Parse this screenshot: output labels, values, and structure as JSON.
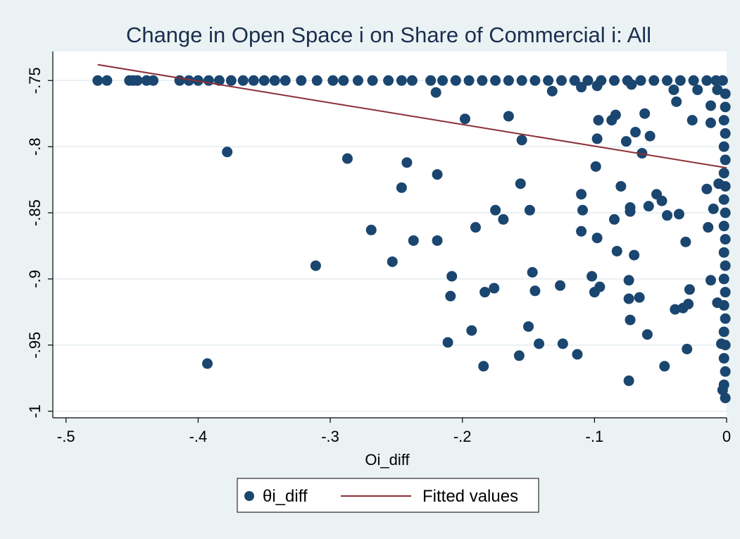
{
  "chart_data": {
    "type": "scatter",
    "title": "Change in Open Space i on Share of Commercial i: All",
    "xlabel": "Oi_diff",
    "ylabel": "",
    "xlim": [
      -0.51,
      0.0
    ],
    "ylim": [
      -1.005,
      -0.728
    ],
    "x_ticks": [
      -0.5,
      -0.4,
      -0.3,
      -0.2,
      -0.1,
      0
    ],
    "x_tick_labels": [
      "-.5",
      "-.4",
      "-.3",
      "-.2",
      "-.1",
      "0"
    ],
    "y_ticks": [
      -1,
      -0.95,
      -0.9,
      -0.85,
      -0.8,
      -0.75
    ],
    "y_tick_labels": [
      "-1",
      "-.95",
      "-.9",
      "-.85",
      "-.8",
      "-.75"
    ],
    "grid": true,
    "legend_position": "bottom",
    "colors": {
      "marker": "#1a4670",
      "fit": "#8b2f36",
      "plot_bg": "#ffffff",
      "page_bg": "#eaf2f3",
      "grid": "#e3ecef"
    },
    "series": [
      {
        "name": "θi_diff",
        "kind": "scatter",
        "points": [
          [
            -0.476,
            -0.75
          ],
          [
            -0.469,
            -0.75
          ],
          [
            -0.452,
            -0.75
          ],
          [
            -0.449,
            -0.75
          ],
          [
            -0.446,
            -0.75
          ],
          [
            -0.439,
            -0.75
          ],
          [
            -0.434,
            -0.75
          ],
          [
            -0.414,
            -0.75
          ],
          [
            -0.407,
            -0.75
          ],
          [
            -0.4,
            -0.75
          ],
          [
            -0.392,
            -0.75
          ],
          [
            -0.384,
            -0.75
          ],
          [
            -0.375,
            -0.75
          ],
          [
            -0.366,
            -0.75
          ],
          [
            -0.358,
            -0.75
          ],
          [
            -0.35,
            -0.75
          ],
          [
            -0.342,
            -0.75
          ],
          [
            -0.334,
            -0.75
          ],
          [
            -0.322,
            -0.75
          ],
          [
            -0.31,
            -0.75
          ],
          [
            -0.298,
            -0.75
          ],
          [
            -0.29,
            -0.75
          ],
          [
            -0.279,
            -0.75
          ],
          [
            -0.268,
            -0.75
          ],
          [
            -0.256,
            -0.75
          ],
          [
            -0.246,
            -0.75
          ],
          [
            -0.238,
            -0.75
          ],
          [
            -0.224,
            -0.75
          ],
          [
            -0.215,
            -0.75
          ],
          [
            -0.205,
            -0.75
          ],
          [
            -0.195,
            -0.75
          ],
          [
            -0.185,
            -0.75
          ],
          [
            -0.175,
            -0.75
          ],
          [
            -0.165,
            -0.75
          ],
          [
            -0.155,
            -0.75
          ],
          [
            -0.145,
            -0.75
          ],
          [
            -0.135,
            -0.75
          ],
          [
            -0.125,
            -0.75
          ],
          [
            -0.115,
            -0.75
          ],
          [
            -0.105,
            -0.75
          ],
          [
            -0.095,
            -0.75
          ],
          [
            -0.085,
            -0.75
          ],
          [
            -0.075,
            -0.75
          ],
          [
            -0.065,
            -0.75
          ],
          [
            -0.055,
            -0.75
          ],
          [
            -0.045,
            -0.75
          ],
          [
            -0.035,
            -0.75
          ],
          [
            -0.025,
            -0.75
          ],
          [
            -0.015,
            -0.75
          ],
          [
            -0.008,
            -0.75
          ],
          [
            -0.003,
            -0.75
          ],
          [
            -0.22,
            -0.759
          ],
          [
            -0.132,
            -0.758
          ],
          [
            -0.11,
            -0.755
          ],
          [
            -0.098,
            -0.754
          ],
          [
            -0.072,
            -0.753
          ],
          [
            -0.04,
            -0.757
          ],
          [
            -0.022,
            -0.757
          ],
          [
            -0.007,
            -0.757
          ],
          [
            -0.378,
            -0.804
          ],
          [
            -0.287,
            -0.809
          ],
          [
            -0.242,
            -0.812
          ],
          [
            -0.219,
            -0.821
          ],
          [
            -0.246,
            -0.831
          ],
          [
            -0.198,
            -0.779
          ],
          [
            -0.165,
            -0.777
          ],
          [
            -0.155,
            -0.795
          ],
          [
            -0.097,
            -0.78
          ],
          [
            -0.098,
            -0.794
          ],
          [
            -0.087,
            -0.78
          ],
          [
            -0.084,
            -0.776
          ],
          [
            -0.076,
            -0.796
          ],
          [
            -0.069,
            -0.789
          ],
          [
            -0.064,
            -0.805
          ],
          [
            -0.062,
            -0.775
          ],
          [
            -0.058,
            -0.792
          ],
          [
            -0.038,
            -0.766
          ],
          [
            -0.026,
            -0.78
          ],
          [
            -0.012,
            -0.782
          ],
          [
            -0.012,
            -0.769
          ],
          [
            -0.156,
            -0.828
          ],
          [
            -0.099,
            -0.815
          ],
          [
            -0.08,
            -0.83
          ],
          [
            -0.11,
            -0.836
          ],
          [
            -0.109,
            -0.848
          ],
          [
            -0.175,
            -0.848
          ],
          [
            -0.149,
            -0.848
          ],
          [
            -0.169,
            -0.855
          ],
          [
            -0.19,
            -0.861
          ],
          [
            -0.269,
            -0.863
          ],
          [
            -0.237,
            -0.871
          ],
          [
            -0.219,
            -0.871
          ],
          [
            -0.11,
            -0.864
          ],
          [
            -0.098,
            -0.869
          ],
          [
            -0.085,
            -0.855
          ],
          [
            -0.073,
            -0.846
          ],
          [
            -0.073,
            -0.849
          ],
          [
            -0.059,
            -0.845
          ],
          [
            -0.053,
            -0.836
          ],
          [
            -0.049,
            -0.841
          ],
          [
            -0.045,
            -0.852
          ],
          [
            -0.036,
            -0.851
          ],
          [
            -0.015,
            -0.832
          ],
          [
            -0.01,
            -0.847
          ],
          [
            -0.006,
            -0.828
          ],
          [
            -0.014,
            -0.861
          ],
          [
            -0.031,
            -0.872
          ],
          [
            -0.083,
            -0.879
          ],
          [
            -0.07,
            -0.882
          ],
          [
            -0.311,
            -0.89
          ],
          [
            -0.253,
            -0.887
          ],
          [
            -0.208,
            -0.898
          ],
          [
            -0.209,
            -0.913
          ],
          [
            -0.183,
            -0.91
          ],
          [
            -0.176,
            -0.907
          ],
          [
            -0.147,
            -0.895
          ],
          [
            -0.145,
            -0.909
          ],
          [
            -0.126,
            -0.905
          ],
          [
            -0.102,
            -0.898
          ],
          [
            -0.1,
            -0.91
          ],
          [
            -0.096,
            -0.906
          ],
          [
            -0.074,
            -0.901
          ],
          [
            -0.074,
            -0.915
          ],
          [
            -0.066,
            -0.914
          ],
          [
            -0.073,
            -0.931
          ],
          [
            -0.039,
            -0.923
          ],
          [
            -0.033,
            -0.922
          ],
          [
            -0.029,
            -0.919
          ],
          [
            -0.028,
            -0.908
          ],
          [
            -0.012,
            -0.901
          ],
          [
            -0.007,
            -0.918
          ],
          [
            -0.211,
            -0.948
          ],
          [
            -0.193,
            -0.939
          ],
          [
            -0.15,
            -0.936
          ],
          [
            -0.157,
            -0.958
          ],
          [
            -0.142,
            -0.949
          ],
          [
            -0.124,
            -0.949
          ],
          [
            -0.113,
            -0.957
          ],
          [
            -0.184,
            -0.966
          ],
          [
            -0.06,
            -0.942
          ],
          [
            -0.047,
            -0.966
          ],
          [
            -0.03,
            -0.953
          ],
          [
            -0.074,
            -0.977
          ],
          [
            -0.393,
            -0.964
          ],
          [
            -0.001,
            -0.76
          ],
          [
            -0.001,
            -0.77
          ],
          [
            -0.002,
            -0.78
          ],
          [
            -0.001,
            -0.79
          ],
          [
            -0.002,
            -0.8
          ],
          [
            -0.001,
            -0.81
          ],
          [
            -0.002,
            -0.82
          ],
          [
            -0.001,
            -0.83
          ],
          [
            -0.002,
            -0.84
          ],
          [
            -0.001,
            -0.85
          ],
          [
            -0.002,
            -0.86
          ],
          [
            -0.001,
            -0.87
          ],
          [
            -0.002,
            -0.88
          ],
          [
            -0.001,
            -0.89
          ],
          [
            -0.002,
            -0.9
          ],
          [
            -0.001,
            -0.91
          ],
          [
            -0.002,
            -0.92
          ],
          [
            -0.001,
            -0.93
          ],
          [
            -0.002,
            -0.94
          ],
          [
            -0.001,
            -0.95
          ],
          [
            -0.002,
            -0.96
          ],
          [
            -0.001,
            -0.97
          ],
          [
            -0.002,
            -0.98
          ],
          [
            -0.001,
            -0.99
          ],
          [
            -0.003,
            -0.984
          ],
          [
            -0.004,
            -0.949
          ]
        ]
      },
      {
        "name": "Fitted values",
        "kind": "line",
        "points": [
          [
            -0.476,
            -0.738
          ],
          [
            0.0,
            -0.816
          ]
        ]
      }
    ]
  }
}
